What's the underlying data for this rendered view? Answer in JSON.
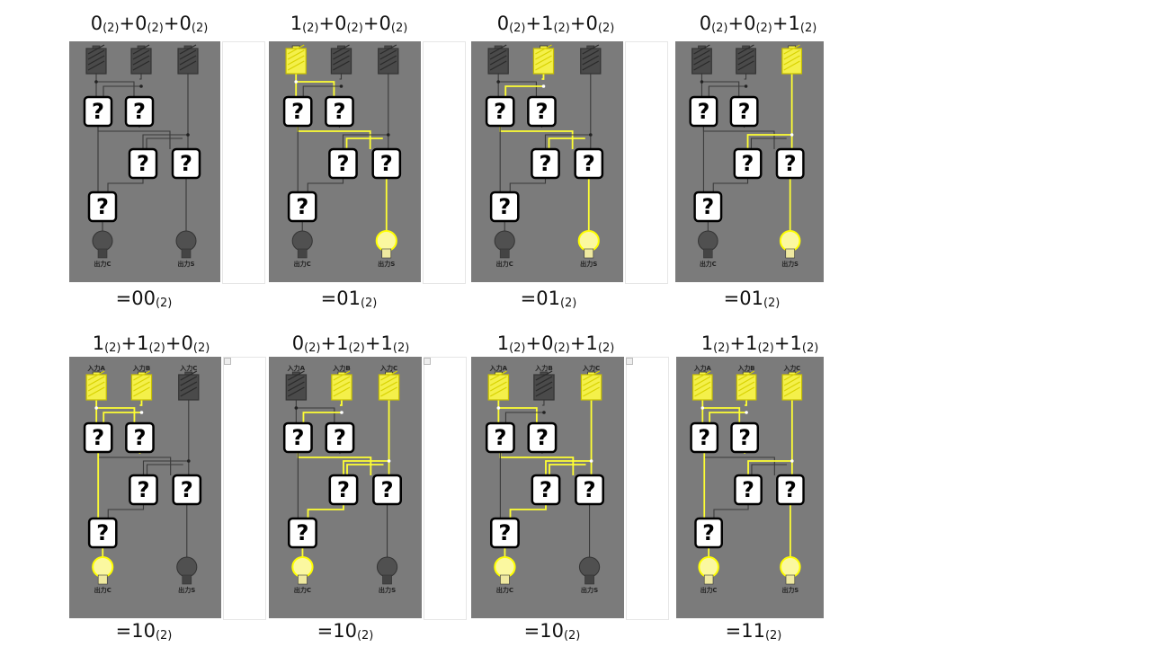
{
  "labels": {
    "input_a": "入力A",
    "input_b": "入力B",
    "input_c": "入力C",
    "output_c": "出力C",
    "output_s": "出力S",
    "unknown_gate": "?",
    "base2": "(2)"
  },
  "colors": {
    "board": "#7b7b7b",
    "wire_off": "#3a3a3a",
    "wire_on": "#ffff33",
    "battery_off": "#4a4a4a",
    "battery_on": "#f4f04a",
    "bulb_off": "#505050",
    "bulb_on": "#fbf8a0"
  },
  "cases": [
    {
      "a": "0",
      "b": "0",
      "c": "0",
      "result": "=00",
      "inputs": [
        0,
        0,
        0
      ],
      "output_c": 0,
      "output_s": 0,
      "show_input_labels": false
    },
    {
      "a": "1",
      "b": "0",
      "c": "0",
      "result": "=01",
      "inputs": [
        1,
        0,
        0
      ],
      "output_c": 0,
      "output_s": 1,
      "show_input_labels": false
    },
    {
      "a": "0",
      "b": "1",
      "c": "0",
      "result": "=01",
      "inputs": [
        0,
        1,
        0
      ],
      "output_c": 0,
      "output_s": 1,
      "show_input_labels": false
    },
    {
      "a": "0",
      "b": "0",
      "c": "1",
      "result": "=01",
      "inputs": [
        0,
        0,
        1
      ],
      "output_c": 0,
      "output_s": 1,
      "show_input_labels": false
    },
    {
      "a": "1",
      "b": "1",
      "c": "0",
      "result": "=10",
      "inputs": [
        1,
        1,
        0
      ],
      "output_c": 1,
      "output_s": 0,
      "show_input_labels": true
    },
    {
      "a": "0",
      "b": "1",
      "c": "1",
      "result": "=10",
      "inputs": [
        0,
        1,
        1
      ],
      "output_c": 1,
      "output_s": 0,
      "show_input_labels": true
    },
    {
      "a": "1",
      "b": "0",
      "c": "1",
      "result": "=10",
      "inputs": [
        1,
        0,
        1
      ],
      "output_c": 1,
      "output_s": 0,
      "show_input_labels": true
    },
    {
      "a": "1",
      "b": "1",
      "c": "1",
      "result": "=11",
      "inputs": [
        1,
        1,
        1
      ],
      "output_c": 1,
      "output_s": 1,
      "show_input_labels": true
    }
  ]
}
